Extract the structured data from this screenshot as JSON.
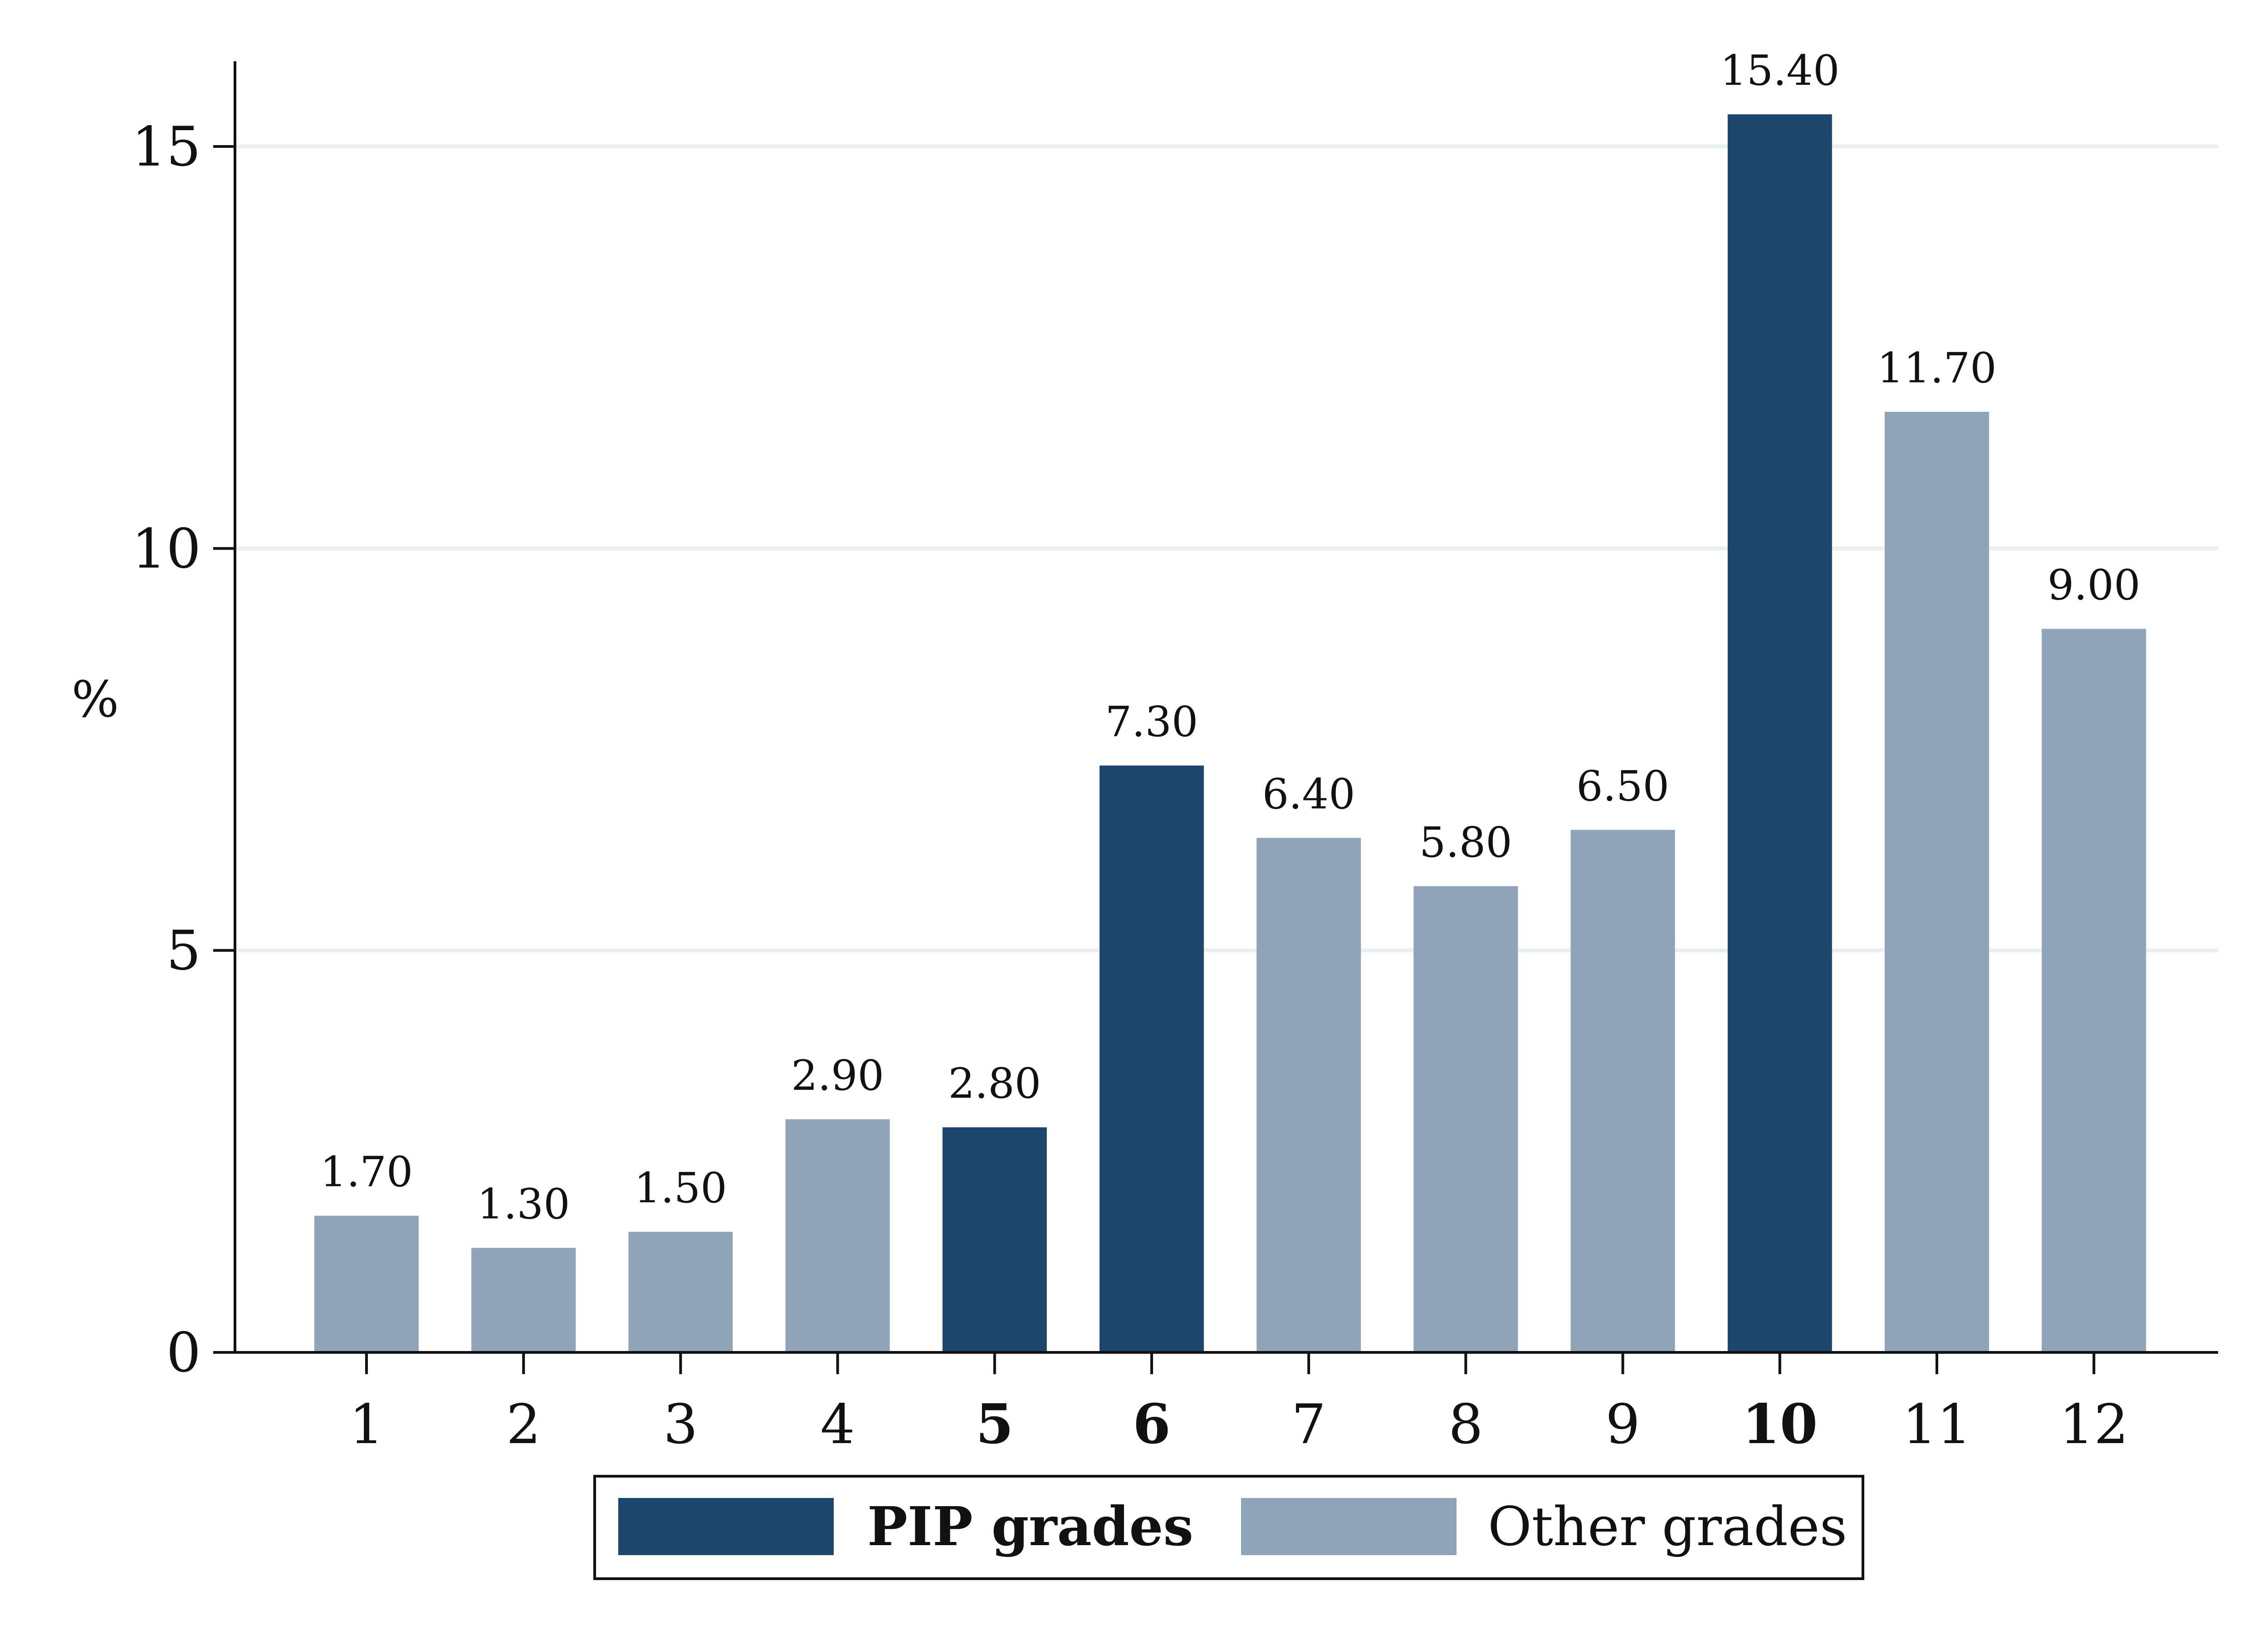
{
  "chart_data": {
    "type": "bar",
    "categories": [
      "1",
      "2",
      "3",
      "4",
      "5",
      "6",
      "7",
      "8",
      "9",
      "10",
      "11",
      "12"
    ],
    "values": [
      1.7,
      1.3,
      1.5,
      2.9,
      2.8,
      7.3,
      6.4,
      5.8,
      6.5,
      15.4,
      11.7,
      9.0
    ],
    "data_labels": [
      "1.70",
      "1.30",
      "1.50",
      "2.90",
      "2.80",
      "7.30",
      "6.40",
      "5.80",
      "6.50",
      "15.40",
      "11.70",
      "9.00"
    ],
    "groups": [
      "other",
      "other",
      "other",
      "other",
      "pip",
      "pip",
      "other",
      "other",
      "other",
      "pip",
      "other",
      "other"
    ],
    "series": [
      {
        "key": "pip",
        "name": "PIP grades",
        "color": "#1d466d"
      },
      {
        "key": "other",
        "name": "Other grades",
        "color": "#8fa4b8"
      }
    ],
    "title": "",
    "xlabel": "",
    "ylabel": "%",
    "ylim": [
      0,
      16
    ],
    "yticks": [
      "0",
      "5",
      "10",
      "15"
    ],
    "grid": true,
    "gridline_color": "#eaf0f0",
    "legend": "bottom"
  }
}
